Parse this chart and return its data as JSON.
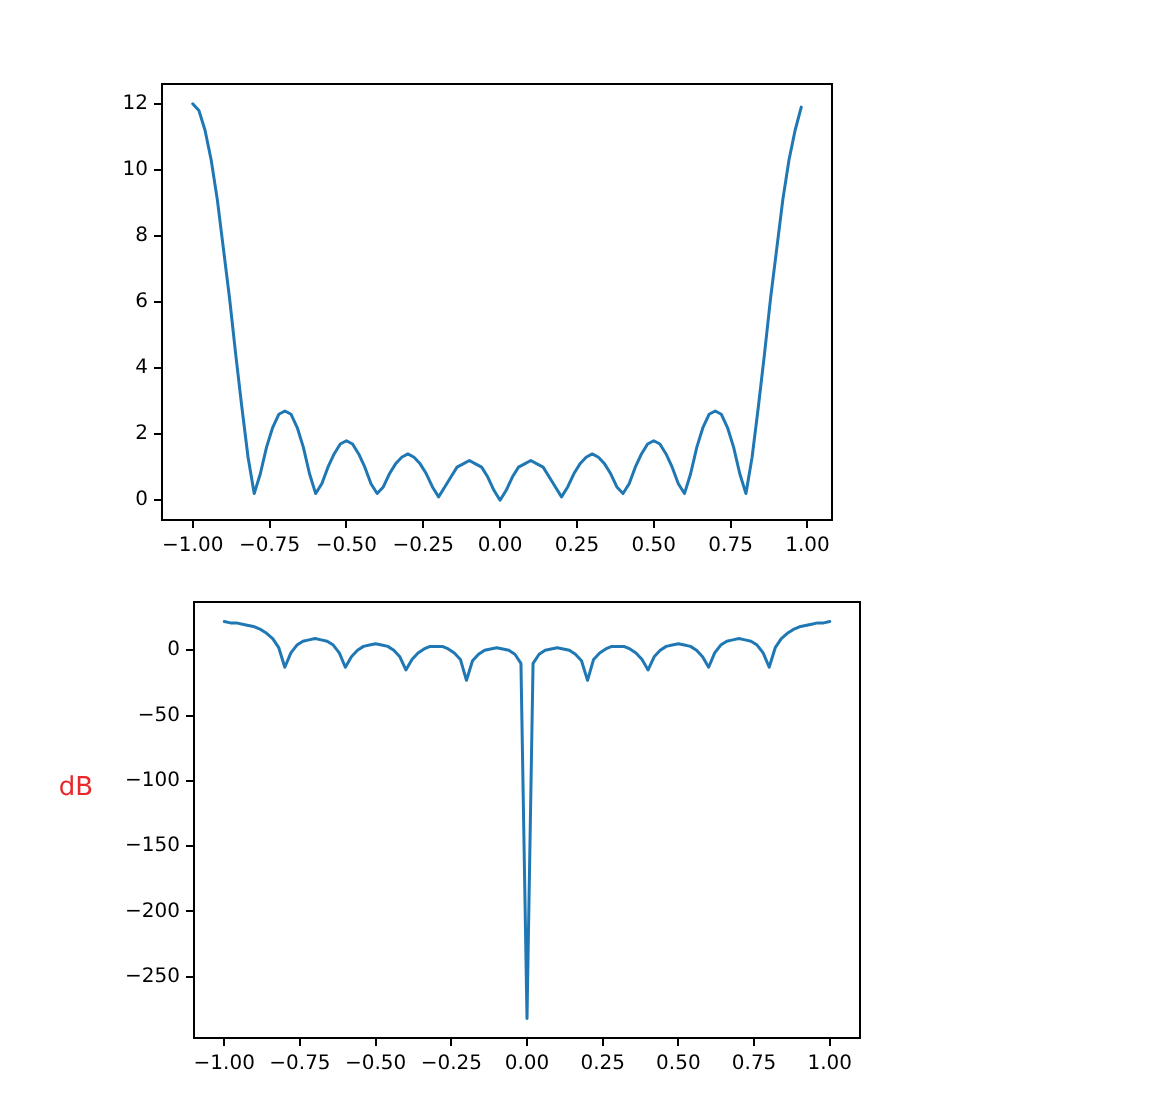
{
  "chart_data": [
    {
      "type": "line",
      "color": "#1f77b4",
      "x": [
        -1,
        -0.98,
        -0.96,
        -0.94,
        -0.92,
        -0.9,
        -0.88,
        -0.86,
        -0.84,
        -0.82,
        -0.8,
        -0.78,
        -0.76,
        -0.74,
        -0.72,
        -0.7,
        -0.68,
        -0.66,
        -0.64,
        -0.62,
        -0.6,
        -0.58,
        -0.56,
        -0.54,
        -0.52,
        -0.5,
        -0.48,
        -0.46,
        -0.44,
        -0.42,
        -0.4,
        -0.38,
        -0.36,
        -0.34,
        -0.32,
        -0.3,
        -0.28,
        -0.26,
        -0.24,
        -0.22,
        -0.2,
        -0.18,
        -0.16,
        -0.14,
        -0.12,
        -0.1,
        -0.08,
        -0.06,
        -0.04,
        -0.02,
        0,
        0.02,
        0.04,
        0.06,
        0.08,
        0.1,
        0.12,
        0.14,
        0.16,
        0.18,
        0.2,
        0.22,
        0.24,
        0.26,
        0.28,
        0.3,
        0.32,
        0.34,
        0.36,
        0.38,
        0.4,
        0.42,
        0.44,
        0.46,
        0.48,
        0.5,
        0.52,
        0.54,
        0.56,
        0.58,
        0.6,
        0.62,
        0.64,
        0.66,
        0.68,
        0.7,
        0.72,
        0.74,
        0.76,
        0.78,
        0.8,
        0.82,
        0.84,
        0.86,
        0.88,
        0.9,
        0.92,
        0.94,
        0.96,
        0.98
      ],
      "values": [
        12,
        11.8,
        11.2,
        10.3,
        9.1,
        7.6,
        6.1,
        4.4,
        2.8,
        1.3,
        0.2,
        0.8,
        1.6,
        2.2,
        2.6,
        2.7,
        2.6,
        2.2,
        1.6,
        0.8,
        0.2,
        0.5,
        1.0,
        1.4,
        1.7,
        1.8,
        1.7,
        1.4,
        1.0,
        0.5,
        0.2,
        0.4,
        0.8,
        1.1,
        1.3,
        1.4,
        1.3,
        1.1,
        0.8,
        0.4,
        0.1,
        0.4,
        0.7,
        1.0,
        1.1,
        1.2,
        1.1,
        1.0,
        0.7,
        0.3,
        0,
        0.3,
        0.7,
        1.0,
        1.1,
        1.2,
        1.1,
        1.0,
        0.7,
        0.4,
        0.1,
        0.4,
        0.8,
        1.1,
        1.3,
        1.4,
        1.3,
        1.1,
        0.8,
        0.4,
        0.2,
        0.5,
        1.0,
        1.4,
        1.7,
        1.8,
        1.7,
        1.4,
        1.0,
        0.5,
        0.2,
        0.8,
        1.6,
        2.2,
        2.6,
        2.7,
        2.6,
        2.2,
        1.6,
        0.8,
        0.2,
        1.3,
        2.8,
        4.4,
        6.1,
        7.6,
        9.1,
        10.3,
        11.2,
        11.9
      ],
      "xlim": [
        -1.1,
        1.08
      ],
      "xticks": [
        {
          "value": -1,
          "label": "−1.00"
        },
        {
          "value": -0.75,
          "label": "−0.75"
        },
        {
          "value": -0.5,
          "label": "−0.50"
        },
        {
          "value": -0.25,
          "label": "−0.25"
        },
        {
          "value": 0,
          "label": "0.00"
        },
        {
          "value": 0.25,
          "label": "0.25"
        },
        {
          "value": 0.5,
          "label": "0.50"
        },
        {
          "value": 0.75,
          "label": "0.75"
        },
        {
          "value": 1,
          "label": "1.00"
        }
      ],
      "ylim": [
        -0.6,
        12.6
      ],
      "yticks": [
        0,
        2,
        4,
        6,
        8,
        10,
        12
      ]
    },
    {
      "type": "line",
      "color": "#1f77b4",
      "ylabel": "dB",
      "x": [
        -1,
        -0.98,
        -0.96,
        -0.94,
        -0.92,
        -0.9,
        -0.88,
        -0.86,
        -0.84,
        -0.82,
        -0.8,
        -0.78,
        -0.76,
        -0.74,
        -0.72,
        -0.7,
        -0.68,
        -0.66,
        -0.64,
        -0.62,
        -0.6,
        -0.58,
        -0.56,
        -0.54,
        -0.52,
        -0.5,
        -0.48,
        -0.46,
        -0.44,
        -0.42,
        -0.4,
        -0.38,
        -0.36,
        -0.34,
        -0.32,
        -0.3,
        -0.28,
        -0.26,
        -0.24,
        -0.22,
        -0.2,
        -0.18,
        -0.16,
        -0.14,
        -0.12,
        -0.1,
        -0.08,
        -0.06,
        -0.04,
        -0.02,
        0,
        0.02,
        0.04,
        0.06,
        0.08,
        0.1,
        0.12,
        0.14,
        0.16,
        0.18,
        0.2,
        0.22,
        0.24,
        0.26,
        0.28,
        0.3,
        0.32,
        0.34,
        0.36,
        0.38,
        0.4,
        0.42,
        0.44,
        0.46,
        0.48,
        0.5,
        0.52,
        0.54,
        0.56,
        0.58,
        0.6,
        0.62,
        0.64,
        0.66,
        0.68,
        0.7,
        0.72,
        0.74,
        0.76,
        0.78,
        0.8,
        0.82,
        0.84,
        0.86,
        0.88,
        0.9,
        0.92,
        0.94,
        0.96,
        0.98,
        1
      ],
      "values": [
        22,
        21,
        21,
        20,
        19,
        18,
        16,
        13,
        9,
        2,
        -13,
        -2,
        4,
        7,
        8,
        9,
        8,
        7,
        4,
        -2,
        -13,
        -5,
        0,
        3,
        4,
        5,
        4,
        3,
        0,
        -5,
        -15,
        -7,
        -2,
        1,
        3,
        3,
        3,
        1,
        -2,
        -7,
        -23,
        -8,
        -3,
        0,
        1,
        2,
        1,
        0,
        -3,
        -10,
        -282,
        -10,
        -3,
        0,
        1,
        2,
        1,
        0,
        -3,
        -8,
        -23,
        -7,
        -2,
        1,
        3,
        3,
        3,
        1,
        -2,
        -7,
        -15,
        -5,
        0,
        3,
        4,
        5,
        4,
        3,
        0,
        -5,
        -13,
        -2,
        4,
        7,
        8,
        9,
        8,
        7,
        4,
        -2,
        -13,
        2,
        9,
        13,
        16,
        18,
        19,
        20,
        21,
        21,
        22
      ],
      "xlim": [
        -1.1,
        1.1
      ],
      "xticks": [
        {
          "value": -1,
          "label": "−1.00"
        },
        {
          "value": -0.75,
          "label": "−0.75"
        },
        {
          "value": -0.5,
          "label": "−0.50"
        },
        {
          "value": -0.25,
          "label": "−0.25"
        },
        {
          "value": 0,
          "label": "0.00"
        },
        {
          "value": 0.25,
          "label": "0.25"
        },
        {
          "value": 0.5,
          "label": "0.50"
        },
        {
          "value": 0.75,
          "label": "0.75"
        },
        {
          "value": 1,
          "label": "1.00"
        }
      ],
      "ylim": [
        -297,
        37
      ],
      "yticks": [
        0,
        {
          "value": -50,
          "label": "−50"
        },
        {
          "value": -100,
          "label": "−100"
        },
        {
          "value": -150,
          "label": "−150"
        },
        {
          "value": -200,
          "label": "−200"
        },
        {
          "value": -250,
          "label": "−250"
        }
      ]
    }
  ]
}
